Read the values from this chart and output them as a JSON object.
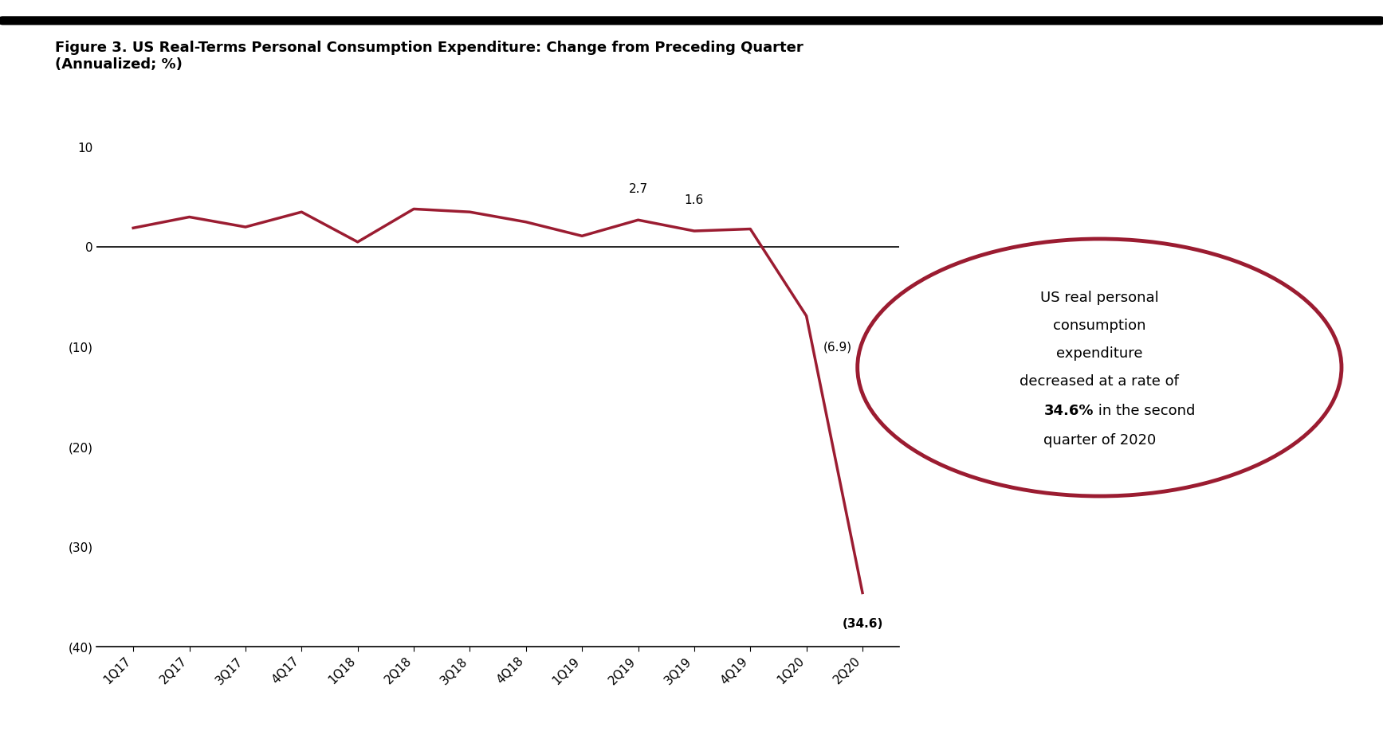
{
  "title_line1": "Figure 3. US Real-Terms Personal Consumption Expenditure: Change from Preceding Quarter",
  "title_line2": "(Annualized; %)",
  "categories": [
    "1Q17",
    "2Q17",
    "3Q17",
    "4Q17",
    "1Q18",
    "2Q18",
    "3Q18",
    "4Q18",
    "1Q19",
    "2Q19",
    "3Q19",
    "4Q19",
    "1Q20",
    "2Q20"
  ],
  "values": [
    1.9,
    3.0,
    2.0,
    3.5,
    0.5,
    3.8,
    3.5,
    2.5,
    1.1,
    2.7,
    1.6,
    1.8,
    -6.9,
    -34.6
  ],
  "line_color": "#9B1C31",
  "background_color": "#ffffff",
  "ylim": [
    -40,
    10
  ],
  "yticks": [
    10,
    0,
    -10,
    -20,
    -30,
    -40
  ],
  "ytick_labels": [
    "10",
    "0",
    "(10)",
    "(20)",
    "(30)",
    "(40)"
  ],
  "annotated_indices": [
    9,
    10,
    12,
    13
  ],
  "annotated_labels": [
    "2.7",
    "1.6",
    "(6.9)",
    "(34.6)"
  ],
  "annotated_bold": [
    false,
    false,
    false,
    true
  ],
  "circle_text_line1": "US real personal",
  "circle_text_line2": "consumption",
  "circle_text_line3": "expenditure",
  "circle_text_line4": "decreased at a rate of",
  "circle_text_bold": "34.6%",
  "circle_text_line5": " in the second",
  "circle_text_line6": "quarter of 2020",
  "circle_color": "#9B1C31",
  "title_fontsize": 13,
  "tick_fontsize": 11,
  "annotation_fontsize": 11
}
